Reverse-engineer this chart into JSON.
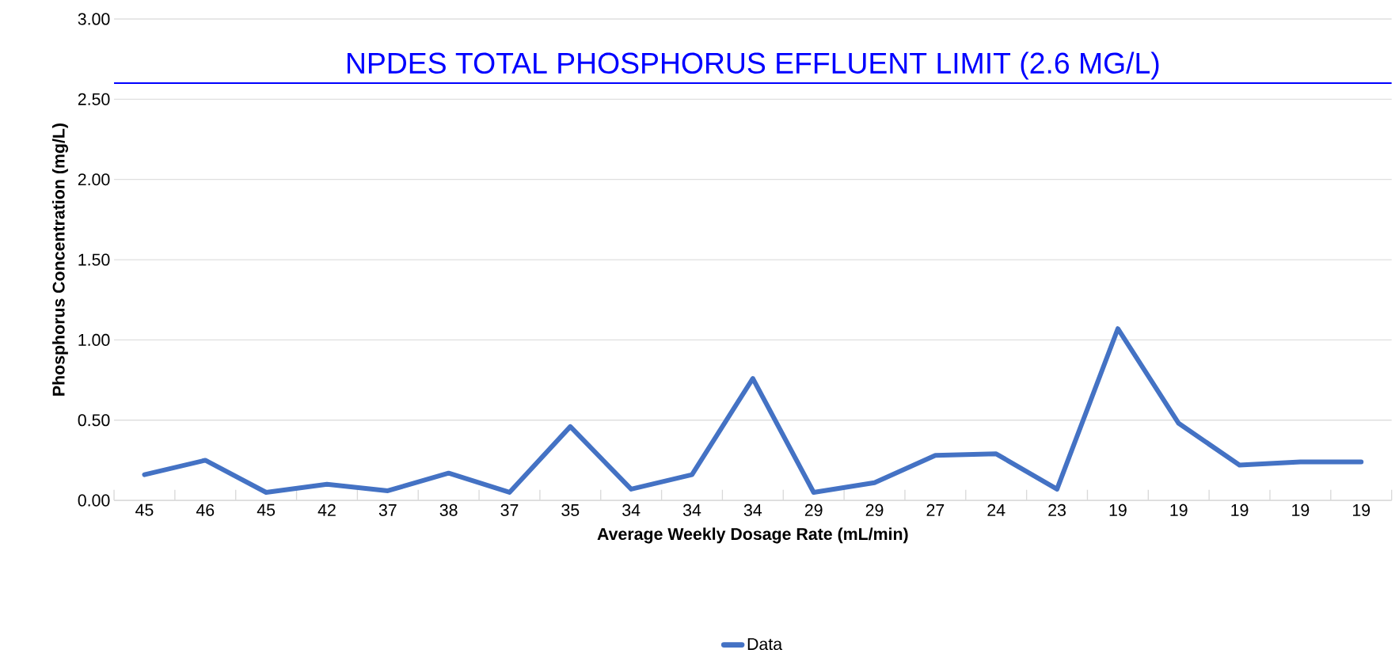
{
  "chart_data": {
    "type": "line",
    "xlabel": "Average Weekly Dosage Rate (mL/min)",
    "ylabel": "Phosphorus Concentration (mg/L)",
    "categories": [
      "45",
      "46",
      "45",
      "42",
      "37",
      "38",
      "37",
      "35",
      "34",
      "34",
      "34",
      "29",
      "29",
      "27",
      "24",
      "23",
      "19",
      "19",
      "19",
      "19",
      "19"
    ],
    "series": [
      {
        "name": "Data",
        "color": "#4472c4",
        "values": [
          0.16,
          0.25,
          0.05,
          0.1,
          0.06,
          0.17,
          0.05,
          0.46,
          0.07,
          0.16,
          0.76,
          0.05,
          0.11,
          0.28,
          0.29,
          0.07,
          1.07,
          0.48,
          0.22,
          0.24,
          0.24
        ]
      }
    ],
    "ylim": [
      0,
      3
    ],
    "yticks": [
      {
        "value": 0,
        "label": "0.00"
      },
      {
        "value": 0.5,
        "label": "0.50"
      },
      {
        "value": 1,
        "label": "1.00"
      },
      {
        "value": 1.5,
        "label": "1.50"
      },
      {
        "value": 2,
        "label": "2.00"
      },
      {
        "value": 2.5,
        "label": "2.50"
      },
      {
        "value": 3,
        "label": "3.00"
      }
    ],
    "ref_lines": [
      {
        "axis": "y",
        "value": 2.6,
        "label": "NPDES TOTAL PHOSPHORUS EFFLUENT LIMIT (2.6 MG/L)",
        "color": "#0000ff"
      }
    ],
    "grid": "y",
    "legend": "bottom"
  }
}
